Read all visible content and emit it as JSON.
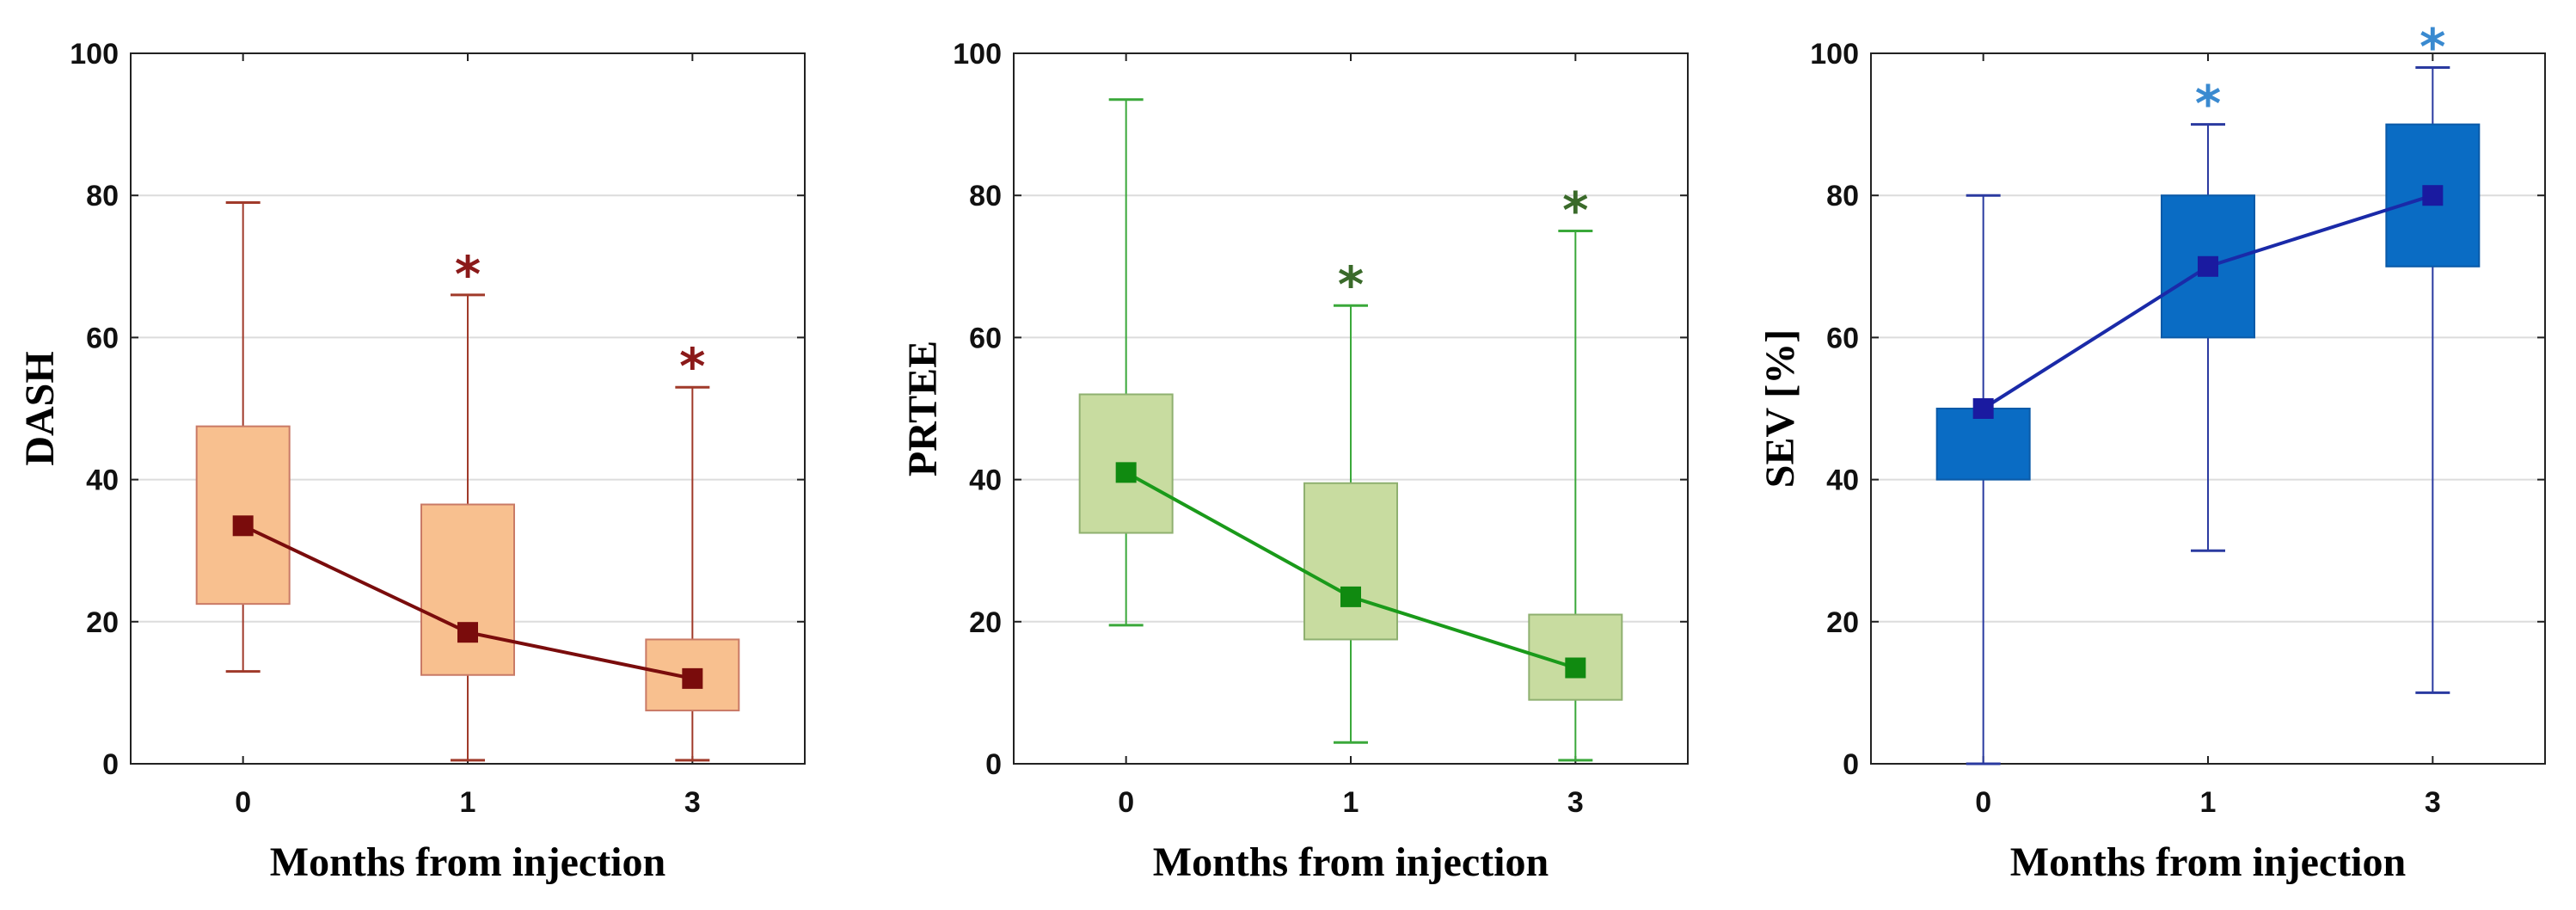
{
  "chart_data": [
    {
      "type": "box",
      "xlabel": "Months from injection",
      "ylabel": "DASH",
      "ylim": [
        0,
        100
      ],
      "yticks": [
        0,
        20,
        40,
        60,
        80,
        100
      ],
      "grid": true,
      "categories": [
        "0",
        "1",
        "3"
      ],
      "boxes": [
        {
          "min": 13,
          "q1": 22.5,
          "q3": 47.5,
          "max": 79,
          "median": 33.5
        },
        {
          "min": 0.5,
          "q1": 12.5,
          "q3": 36.5,
          "max": 66,
          "median": 18.5
        },
        {
          "min": 0.5,
          "q1": 7.5,
          "q3": 17.5,
          "max": 53,
          "median": 12
        }
      ],
      "significance": [
        "",
        "*",
        "*"
      ],
      "colors": {
        "fill": "#f8c08f",
        "stroke": "#c97a66",
        "whisker": "#a03a2a",
        "median": "#7a0c0c",
        "line": "#7a0c0c",
        "star": "#8b1a1a"
      }
    },
    {
      "type": "box",
      "xlabel": "Months from injection",
      "ylabel": "PRTEE",
      "ylim": [
        0,
        100
      ],
      "yticks": [
        0,
        20,
        40,
        60,
        80,
        100
      ],
      "grid": true,
      "categories": [
        "0",
        "1",
        "3"
      ],
      "boxes": [
        {
          "min": 19.5,
          "q1": 32.5,
          "q3": 52,
          "max": 93.5,
          "median": 41
        },
        {
          "min": 3,
          "q1": 17.5,
          "q3": 39.5,
          "max": 64.5,
          "median": 23.5
        },
        {
          "min": 0.5,
          "q1": 9,
          "q3": 21,
          "max": 75,
          "median": 13.5
        }
      ],
      "significance": [
        "",
        "*",
        "*"
      ],
      "colors": {
        "fill": "#c8dca0",
        "stroke": "#8fb070",
        "whisker": "#3aa83a",
        "median": "#108a10",
        "line": "#1a9a1a",
        "star": "#3a6a2a"
      }
    },
    {
      "type": "box",
      "xlabel": "Months from injection",
      "ylabel": "SEV [%]",
      "ylim": [
        0,
        100
      ],
      "yticks": [
        0,
        20,
        40,
        60,
        80,
        100
      ],
      "grid": true,
      "categories": [
        "0",
        "1",
        "3"
      ],
      "boxes": [
        {
          "min": 0,
          "q1": 40,
          "q3": 50,
          "max": 80,
          "median": 50
        },
        {
          "min": 30,
          "q1": 60,
          "q3": 80,
          "max": 90,
          "median": 70
        },
        {
          "min": 10,
          "q1": 70,
          "q3": 90,
          "max": 98,
          "median": 80
        }
      ],
      "significance": [
        "",
        "*",
        "*"
      ],
      "colors": {
        "fill": "#0a6cc4",
        "stroke": "#0a5aa8",
        "whisker": "#2a3aa0",
        "median": "#1a1aa0",
        "line": "#1a2aa8",
        "star": "#3a8ad0"
      }
    }
  ]
}
